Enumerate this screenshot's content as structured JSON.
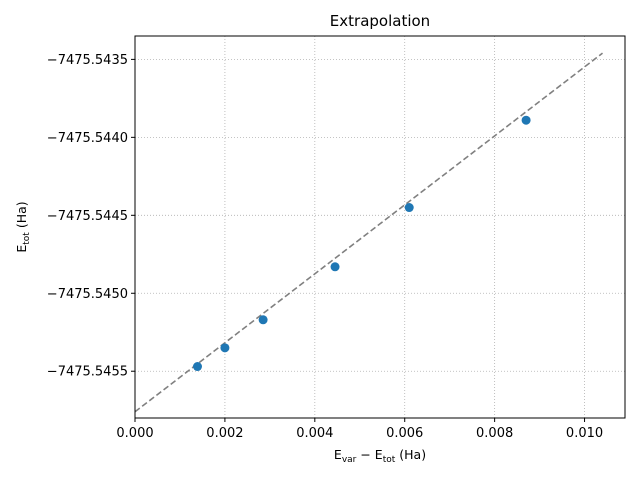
{
  "chart_data": {
    "type": "scatter",
    "title": "Extrapolation",
    "xlabel": {
      "main": "E",
      "sub1": "var",
      "mid": " − E",
      "sub2": "tot",
      "unit": " (Ha)"
    },
    "ylabel": {
      "main": "E",
      "sub": "tot",
      "unit": " (Ha)"
    },
    "xlim": [
      0.0,
      0.0109
    ],
    "ylim": [
      -7475.5458,
      -7475.54335
    ],
    "x_ticks": [
      0.0,
      0.002,
      0.004,
      0.006,
      0.008,
      0.01
    ],
    "x_tick_labels": [
      "0.000",
      "0.002",
      "0.004",
      "0.006",
      "0.008",
      "0.010"
    ],
    "y_ticks": [
      -7475.5455,
      -7475.545,
      -7475.5445,
      -7475.544,
      -7475.5435
    ],
    "y_tick_labels": [
      "−7475.5455",
      "−7475.5450",
      "−7475.5445",
      "−7475.5440",
      "−7475.5435"
    ],
    "grid": true,
    "series": [
      {
        "marker": "circle",
        "color": "#1f77b4",
        "points": [
          {
            "x": 0.00139,
            "y": -7475.54547
          },
          {
            "x": 0.002,
            "y": -7475.54535
          },
          {
            "x": 0.00285,
            "y": -7475.54517
          },
          {
            "x": 0.00445,
            "y": -7475.54483
          },
          {
            "x": 0.0061,
            "y": -7475.54445
          },
          {
            "x": 0.0087,
            "y": -7475.54389
          }
        ]
      }
    ],
    "fit_line": {
      "style": "dashed",
      "color": "#808080",
      "x": [
        0.0,
        0.0104
      ],
      "y": [
        -7475.54576,
        -7475.54346
      ]
    }
  }
}
